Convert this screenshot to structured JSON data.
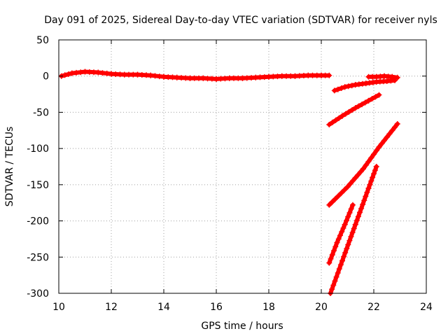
{
  "chart_data": {
    "type": "scatter",
    "title": "Day 091 of 2025, Sidereal Day-to-day VTEC variation (SDTVAR) for receiver nyls",
    "xlabel": "GPS time / hours",
    "ylabel": "SDTVAR / TECUs",
    "xlim": [
      10,
      24
    ],
    "ylim": [
      -300,
      50
    ],
    "xticks": [
      10,
      12,
      14,
      16,
      18,
      20,
      22,
      24
    ],
    "yticks": [
      50,
      0,
      -50,
      -100,
      -150,
      -200,
      -250,
      -300
    ],
    "grid": true,
    "marker": "plus",
    "color": "#ff0000",
    "series": [
      {
        "x": [
          10.1,
          10.5,
          11.0,
          11.5,
          12.0,
          12.5,
          13.0,
          13.5,
          14.0,
          14.5,
          15.0,
          15.5,
          16.0,
          16.5,
          17.0,
          17.5,
          18.0,
          18.5,
          19.0,
          19.5,
          20.0,
          20.3
        ],
        "y": [
          0,
          4,
          6,
          5,
          3,
          2,
          2,
          1,
          -1,
          -2,
          -3,
          -3,
          -4,
          -3,
          -3,
          -2,
          -1,
          0,
          0,
          1,
          1,
          1
        ]
      },
      {
        "x": [
          20.5,
          20.9,
          21.3,
          21.7,
          22.1,
          22.5,
          22.8
        ],
        "y": [
          -20,
          -15,
          -12,
          -10,
          -8,
          -7,
          -6
        ]
      },
      {
        "x": [
          21.8,
          22.1,
          22.4,
          22.7,
          22.9
        ],
        "y": [
          -1,
          -1,
          0,
          -1,
          -2
        ]
      },
      {
        "x": [
          20.3,
          20.8,
          21.3,
          21.8,
          22.2
        ],
        "y": [
          -67,
          -55,
          -44,
          -34,
          -26
        ]
      },
      {
        "x": [
          20.3,
          21.0,
          21.6,
          22.2,
          22.9
        ],
        "y": [
          -178,
          -153,
          -128,
          -98,
          -66
        ]
      },
      {
        "x": [
          20.3,
          20.6,
          20.9,
          21.2
        ],
        "y": [
          -258,
          -230,
          -205,
          -178
        ]
      },
      {
        "x": [
          20.35,
          20.8,
          21.3,
          21.8,
          22.1
        ],
        "y": [
          -300,
          -255,
          -205,
          -155,
          -125
        ]
      }
    ]
  }
}
